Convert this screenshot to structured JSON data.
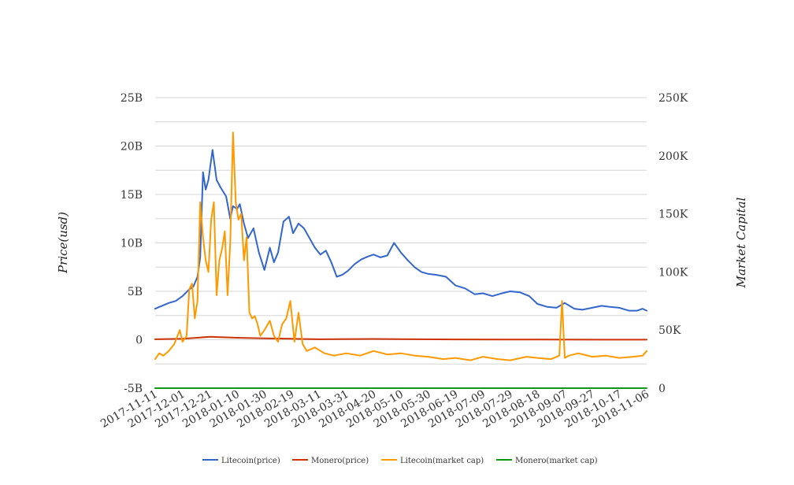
{
  "chart_data": {
    "type": "line",
    "title": "",
    "ylabel_left": "Price(usd)",
    "ylabel_right": "Market Capital",
    "y_left": {
      "min": -5000000000,
      "max": 25000000000,
      "ticks": [
        "-5B",
        "0",
        "5B",
        "10B",
        "15B",
        "20B",
        "25B"
      ],
      "tick_values": [
        -5000000000,
        0,
        5000000000,
        10000000000,
        15000000000,
        20000000000,
        25000000000
      ]
    },
    "y_right": {
      "min": 0,
      "max": 250000,
      "ticks": [
        "0",
        "50K",
        "100K",
        "150K",
        "200K",
        "250K"
      ],
      "tick_values": [
        0,
        50000,
        100000,
        150000,
        200000,
        250000
      ]
    },
    "x_ticks": [
      "2017-11-11",
      "2017-12-01",
      "2017-12-21",
      "2018-01-10",
      "2018-01-30",
      "2018-02-19",
      "2018-03-11",
      "2018-03-31",
      "2018-04-20",
      "2018-05-10",
      "2018-05-30",
      "2018-06-19",
      "2018-07-09",
      "2018-07-29",
      "2018-08-18",
      "2018-09-07",
      "2018-09-27",
      "2018-10-17",
      "2018-11-06"
    ],
    "x_range": [
      "2017-11-11",
      "2018-11-06"
    ],
    "grid": true,
    "legend_position": "bottom",
    "series": [
      {
        "name": "Litecoin(price)",
        "axis": "left",
        "color": "#3366cc",
        "x": [
          "2017-11-11",
          "2017-11-16",
          "2017-11-21",
          "2017-11-26",
          "2017-12-01",
          "2017-12-06",
          "2017-12-09",
          "2017-12-12",
          "2017-12-14",
          "2017-12-16",
          "2017-12-18",
          "2017-12-20",
          "2017-12-23",
          "2017-12-26",
          "2017-12-29",
          "2018-01-02",
          "2018-01-05",
          "2018-01-07",
          "2018-01-10",
          "2018-01-12",
          "2018-01-15",
          "2018-01-18",
          "2018-01-22",
          "2018-01-26",
          "2018-01-30",
          "2018-02-03",
          "2018-02-06",
          "2018-02-09",
          "2018-02-13",
          "2018-02-17",
          "2018-02-20",
          "2018-02-24",
          "2018-02-28",
          "2018-03-04",
          "2018-03-08",
          "2018-03-12",
          "2018-03-16",
          "2018-03-20",
          "2018-03-24",
          "2018-03-28",
          "2018-04-01",
          "2018-04-06",
          "2018-04-11",
          "2018-04-16",
          "2018-04-20",
          "2018-04-25",
          "2018-04-30",
          "2018-05-05",
          "2018-05-10",
          "2018-05-15",
          "2018-05-20",
          "2018-05-25",
          "2018-05-30",
          "2018-06-05",
          "2018-06-12",
          "2018-06-19",
          "2018-06-26",
          "2018-07-03",
          "2018-07-09",
          "2018-07-16",
          "2018-07-23",
          "2018-07-29",
          "2018-08-05",
          "2018-08-12",
          "2018-08-18",
          "2018-08-25",
          "2018-09-01",
          "2018-09-07",
          "2018-09-14",
          "2018-09-20",
          "2018-09-27",
          "2018-10-04",
          "2018-10-10",
          "2018-10-17",
          "2018-10-24",
          "2018-10-30",
          "2018-11-03",
          "2018-11-06"
        ],
        "y": [
          3200000000,
          3500000000,
          3800000000,
          4000000000,
          4500000000,
          5200000000,
          5500000000,
          6500000000,
          8500000000,
          17300000000,
          15500000000,
          16500000000,
          19600000000,
          16500000000,
          15700000000,
          14800000000,
          12500000000,
          13800000000,
          13500000000,
          14000000000,
          12000000000,
          10500000000,
          11500000000,
          9000000000,
          7200000000,
          9500000000,
          8000000000,
          9000000000,
          12200000000,
          12700000000,
          11000000000,
          12000000000,
          11500000000,
          10500000000,
          9500000000,
          8800000000,
          9200000000,
          8000000000,
          6500000000,
          6700000000,
          7100000000,
          7800000000,
          8300000000,
          8600000000,
          8800000000,
          8500000000,
          8700000000,
          10000000000,
          9000000000,
          8200000000,
          7500000000,
          7000000000,
          6800000000,
          6700000000,
          6500000000,
          5600000000,
          5300000000,
          4700000000,
          4800000000,
          4500000000,
          4800000000,
          5000000000,
          4900000000,
          4500000000,
          3700000000,
          3400000000,
          3300000000,
          3800000000,
          3200000000,
          3100000000,
          3300000000,
          3500000000,
          3400000000,
          3300000000,
          3000000000,
          3000000000,
          3200000000,
          3000000000
        ]
      },
      {
        "name": "Monero(price)",
        "axis": "left",
        "color": "#cc3300",
        "x": [
          "2017-11-11",
          "2017-12-01",
          "2017-12-21",
          "2018-01-10",
          "2018-01-30",
          "2018-02-19",
          "2018-03-11",
          "2018-04-20",
          "2018-06-19",
          "2018-08-18",
          "2018-11-06"
        ],
        "y": [
          50000000,
          100000000,
          300000000,
          200000000,
          150000000,
          100000000,
          50000000,
          80000000,
          30000000,
          20000000,
          10000000
        ]
      },
      {
        "name": "Litecoin(market cap)",
        "axis": "right",
        "color": "#ff9900",
        "x": [
          "2017-11-11",
          "2017-11-14",
          "2017-11-17",
          "2017-11-21",
          "2017-11-25",
          "2017-11-29",
          "2017-12-01",
          "2017-12-04",
          "2017-12-06",
          "2017-12-08",
          "2017-12-10",
          "2017-12-12",
          "2017-12-14",
          "2017-12-16",
          "2017-12-18",
          "2017-12-20",
          "2017-12-22",
          "2017-12-24",
          "2017-12-26",
          "2017-12-28",
          "2017-12-30",
          "2018-01-01",
          "2018-01-03",
          "2018-01-05",
          "2018-01-07",
          "2018-01-09",
          "2018-01-11",
          "2018-01-13",
          "2018-01-15",
          "2018-01-17",
          "2018-01-19",
          "2018-01-21",
          "2018-01-23",
          "2018-01-25",
          "2018-01-27",
          "2018-01-30",
          "2018-02-03",
          "2018-02-06",
          "2018-02-09",
          "2018-02-12",
          "2018-02-15",
          "2018-02-18",
          "2018-02-21",
          "2018-02-24",
          "2018-02-27",
          "2018-03-02",
          "2018-03-08",
          "2018-03-15",
          "2018-03-22",
          "2018-03-31",
          "2018-04-10",
          "2018-04-20",
          "2018-04-30",
          "2018-05-10",
          "2018-05-20",
          "2018-05-30",
          "2018-06-10",
          "2018-06-19",
          "2018-06-30",
          "2018-07-09",
          "2018-07-20",
          "2018-07-29",
          "2018-08-10",
          "2018-08-18",
          "2018-08-28",
          "2018-09-03",
          "2018-09-05",
          "2018-09-07",
          "2018-09-10",
          "2018-09-17",
          "2018-09-27",
          "2018-10-07",
          "2018-10-17",
          "2018-10-27",
          "2018-11-03",
          "2018-11-06"
        ],
        "y": [
          25000,
          30000,
          28000,
          32000,
          38000,
          50000,
          40000,
          45000,
          85000,
          90000,
          60000,
          75000,
          160000,
          130000,
          110000,
          100000,
          145000,
          160000,
          80000,
          110000,
          120000,
          135000,
          80000,
          125000,
          220000,
          160000,
          145000,
          150000,
          110000,
          130000,
          65000,
          60000,
          62000,
          55000,
          45000,
          50000,
          58000,
          45000,
          40000,
          55000,
          60000,
          75000,
          40000,
          65000,
          38000,
          32000,
          35000,
          30000,
          28000,
          30000,
          28000,
          32000,
          29000,
          30000,
          28000,
          27000,
          25000,
          26000,
          24000,
          27000,
          25000,
          24000,
          27000,
          26000,
          25000,
          28000,
          75000,
          26000,
          28000,
          30000,
          27000,
          28000,
          26000,
          27000,
          28000,
          32000
        ]
      },
      {
        "name": "Monero(market cap)",
        "axis": "right",
        "color": "#109618",
        "x": [
          "2017-11-11",
          "2018-11-06"
        ],
        "y": [
          0,
          0
        ]
      }
    ]
  }
}
